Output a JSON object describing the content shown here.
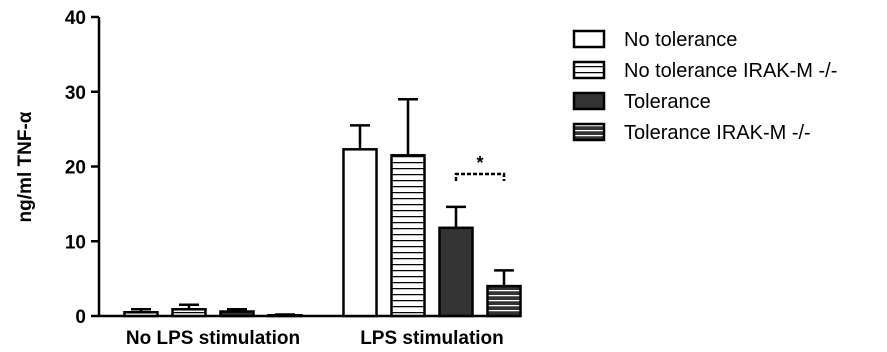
{
  "chart_data": {
    "type": "bar",
    "categories": [
      "No LPS stimulation",
      "LPS stimulation"
    ],
    "ylabel": "ng/ml TNF-α",
    "ylim": [
      0,
      40
    ],
    "yticks": [
      "0",
      "10",
      "20",
      "30",
      "40"
    ],
    "grid": false,
    "legend_position": "top-right",
    "series": [
      {
        "name": "No tolerance",
        "values": [
          0.5,
          22.3
        ],
        "errors": [
          0.4,
          3.2
        ],
        "fill": "#ffffff",
        "hatched": false
      },
      {
        "name": "No tolerance IRAK-M -/-",
        "values": [
          0.9,
          21.5
        ],
        "errors": [
          0.6,
          7.5
        ],
        "fill": "#ffffff",
        "hatched": true
      },
      {
        "name": "Tolerance",
        "values": [
          0.6,
          11.8
        ],
        "errors": [
          0.3,
          2.8
        ],
        "fill": "#333333",
        "hatched": false
      },
      {
        "name": "Tolerance IRAK-M -/-",
        "values": [
          0.1,
          4.0
        ],
        "errors": [
          0.1,
          2.1
        ],
        "fill": "#333333",
        "hatched": true
      }
    ],
    "significance": {
      "label": "*",
      "between": [
        "Tolerance",
        "Tolerance IRAK-M -/-"
      ],
      "category": "LPS stimulation"
    }
  }
}
